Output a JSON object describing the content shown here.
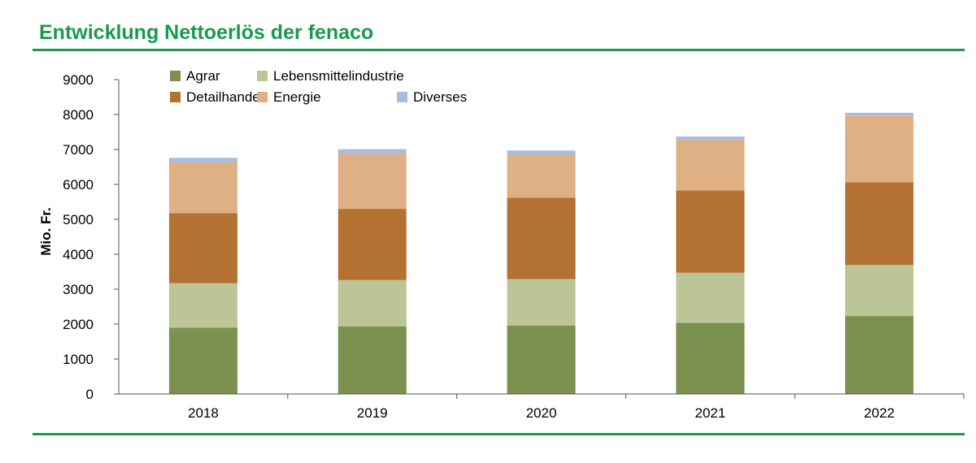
{
  "chart_data": {
    "type": "bar",
    "stacked": true,
    "title": "Entwicklung Nettoerlös der fenaco",
    "xlabel": "",
    "ylabel": "Mio. Fr.",
    "ylim": [
      0,
      9000
    ],
    "yticks": [
      0,
      1000,
      2000,
      3000,
      4000,
      5000,
      6000,
      7000,
      8000,
      9000
    ],
    "categories": [
      "2018",
      "2019",
      "2020",
      "2021",
      "2022"
    ],
    "legend_position": "top-left",
    "series": [
      {
        "name": "Agrar",
        "color": "#7b914d",
        "values": [
          1900,
          1930,
          1960,
          2040,
          2230
        ]
      },
      {
        "name": "Lebensmittelindustrie",
        "color": "#bcc597",
        "values": [
          1270,
          1330,
          1330,
          1430,
          1460
        ]
      },
      {
        "name": "Detailhandel",
        "color": "#b37232",
        "values": [
          2010,
          2040,
          2330,
          2360,
          2370
        ]
      },
      {
        "name": "Energie",
        "color": "#dfb083",
        "values": [
          1450,
          1570,
          1230,
          1440,
          1900
        ]
      },
      {
        "name": "Diverses",
        "color": "#a9bcdd",
        "values": [
          130,
          140,
          120,
          100,
          90
        ]
      }
    ]
  }
}
